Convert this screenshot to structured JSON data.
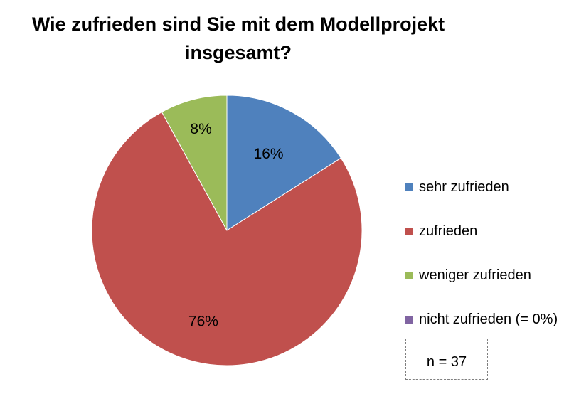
{
  "chart_data": {
    "type": "pie",
    "title": "Wie zufrieden sind Sie mit dem Modellprojekt insgesamt?",
    "title_lines": [
      "Wie zufrieden sind Sie mit dem Modellprojekt",
      "insgesamt?"
    ],
    "slices": [
      {
        "label": "sehr zufrieden",
        "value": 16,
        "value_label": "16%",
        "color": "#4f81bd"
      },
      {
        "label": "zufrieden",
        "value": 76,
        "value_label": "76%",
        "color": "#c0504d"
      },
      {
        "label": "weniger zufrieden",
        "value": 8,
        "value_label": "8%",
        "color": "#9bbb59"
      },
      {
        "label": "nicht zufrieden (= 0%)",
        "value": 0,
        "value_label": "",
        "color": "#8064a2"
      }
    ],
    "legend_position": "right",
    "note": "n = 37"
  }
}
